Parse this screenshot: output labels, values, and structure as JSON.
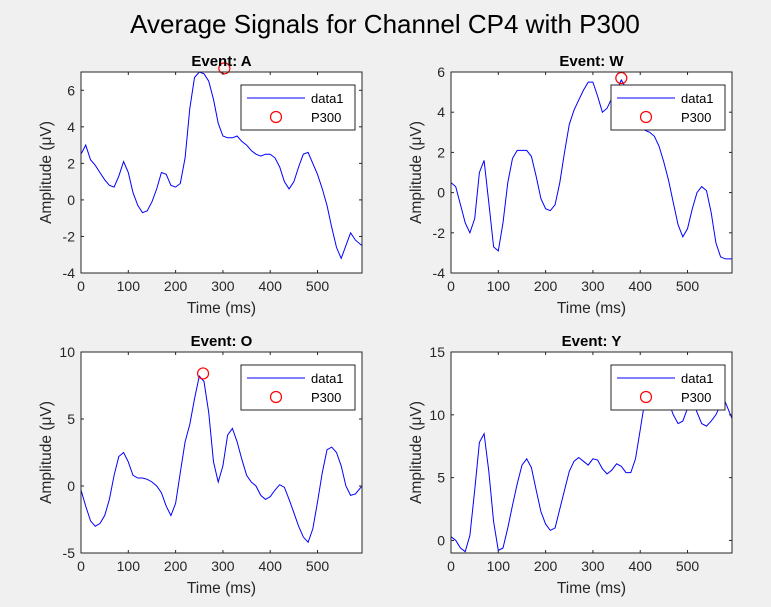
{
  "figure": {
    "title": "Average Signals for Channel CP4 with P300",
    "background": "#f0f0f0",
    "axes_color": "#262626",
    "line_color": "#0000ff",
    "marker_color": "#ff0000"
  },
  "chart_data": [
    {
      "type": "line",
      "title": "Event: A",
      "xlabel": "Time (ms)",
      "ylabel": "Amplitude (μV)",
      "xlim": [
        0,
        594
      ],
      "ylim": [
        -4,
        7
      ],
      "xticks": [
        0,
        100,
        200,
        300,
        400,
        500
      ],
      "yticks": [
        -4,
        -2,
        0,
        2,
        4,
        6
      ],
      "legend": {
        "location": "top-right",
        "entries": [
          "data1",
          "P300"
        ]
      },
      "series": [
        {
          "name": "data1",
          "x": [
            0,
            10,
            20,
            30,
            40,
            50,
            60,
            70,
            80,
            90,
            100,
            110,
            120,
            130,
            140,
            150,
            160,
            170,
            180,
            190,
            200,
            210,
            220,
            230,
            240,
            250,
            260,
            270,
            280,
            290,
            300,
            310,
            320,
            330,
            340,
            350,
            360,
            370,
            380,
            390,
            400,
            410,
            420,
            430,
            440,
            450,
            460,
            470,
            480,
            490,
            500,
            510,
            520,
            530,
            540,
            550,
            560,
            570,
            580,
            594
          ],
          "y": [
            2.5,
            3.0,
            2.2,
            1.9,
            1.5,
            1.1,
            0.8,
            0.7,
            1.3,
            2.1,
            1.5,
            0.4,
            -0.3,
            -0.7,
            -0.6,
            -0.1,
            0.6,
            1.5,
            1.4,
            0.8,
            0.7,
            0.9,
            2.3,
            5.0,
            6.7,
            7.0,
            6.9,
            6.5,
            5.5,
            4.2,
            3.5,
            3.4,
            3.4,
            3.5,
            3.2,
            3.0,
            2.7,
            2.5,
            2.4,
            2.5,
            2.5,
            2.3,
            1.8,
            1.0,
            0.6,
            1.0,
            1.8,
            2.5,
            2.6,
            2.0,
            1.4,
            0.6,
            -0.3,
            -1.5,
            -2.6,
            -3.2,
            -2.5,
            -1.8,
            -2.2,
            -2.5
          ]
        },
        {
          "name": "P300",
          "marker": "circle",
          "x": [
            303
          ],
          "y": [
            7.2
          ]
        }
      ]
    },
    {
      "type": "line",
      "title": "Event: W",
      "xlabel": "Time (ms)",
      "ylabel": "Amplitude (μV)",
      "xlim": [
        0,
        594
      ],
      "ylim": [
        -4,
        6
      ],
      "xticks": [
        0,
        100,
        200,
        300,
        400,
        500
      ],
      "yticks": [
        -4,
        -2,
        0,
        2,
        4,
        6
      ],
      "legend": {
        "location": "top-right",
        "entries": [
          "data1",
          "P300"
        ]
      },
      "series": [
        {
          "name": "data1",
          "x": [
            0,
            10,
            20,
            30,
            40,
            50,
            60,
            70,
            80,
            90,
            100,
            110,
            120,
            130,
            140,
            150,
            160,
            170,
            180,
            190,
            200,
            210,
            220,
            230,
            240,
            250,
            260,
            270,
            280,
            290,
            300,
            310,
            320,
            330,
            340,
            350,
            360,
            370,
            380,
            390,
            400,
            410,
            420,
            430,
            440,
            450,
            460,
            470,
            480,
            490,
            500,
            510,
            520,
            530,
            540,
            550,
            560,
            570,
            580,
            594
          ],
          "y": [
            0.5,
            0.3,
            -0.6,
            -1.5,
            -2.0,
            -1.3,
            1.0,
            1.6,
            -0.5,
            -2.7,
            -2.9,
            -1.5,
            0.5,
            1.7,
            2.1,
            2.1,
            2.1,
            1.8,
            0.8,
            -0.3,
            -0.8,
            -0.9,
            -0.6,
            0.5,
            2.0,
            3.4,
            4.1,
            4.6,
            5.1,
            5.5,
            5.5,
            4.8,
            4.0,
            4.2,
            4.7,
            5.1,
            5.6,
            5.2,
            4.6,
            3.8,
            3.3,
            3.1,
            3.0,
            2.8,
            2.3,
            1.5,
            0.6,
            -0.5,
            -1.6,
            -2.2,
            -1.8,
            -0.8,
            0.0,
            0.3,
            0.1,
            -1.0,
            -2.5,
            -3.2,
            -3.3,
            -3.3
          ]
        },
        {
          "name": "P300",
          "marker": "circle",
          "x": [
            360
          ],
          "y": [
            5.7
          ]
        }
      ]
    },
    {
      "type": "line",
      "title": "Event: O",
      "xlabel": "Time (ms)",
      "ylabel": "Amplitude (μV)",
      "xlim": [
        0,
        594
      ],
      "ylim": [
        -5,
        10
      ],
      "xticks": [
        0,
        100,
        200,
        300,
        400,
        500
      ],
      "yticks": [
        -5,
        0,
        5,
        10
      ],
      "legend": {
        "location": "top-right",
        "entries": [
          "data1",
          "P300"
        ]
      },
      "series": [
        {
          "name": "data1",
          "x": [
            0,
            10,
            20,
            30,
            40,
            50,
            60,
            70,
            80,
            90,
            100,
            110,
            120,
            130,
            140,
            150,
            160,
            170,
            180,
            190,
            200,
            210,
            220,
            230,
            240,
            250,
            260,
            270,
            280,
            290,
            300,
            310,
            320,
            330,
            340,
            350,
            360,
            370,
            380,
            390,
            400,
            410,
            420,
            430,
            440,
            450,
            460,
            470,
            480,
            490,
            500,
            510,
            520,
            530,
            540,
            550,
            560,
            570,
            580,
            594
          ],
          "y": [
            -0.3,
            -1.5,
            -2.6,
            -3.0,
            -2.8,
            -2.2,
            -1.0,
            0.8,
            2.2,
            2.5,
            1.8,
            0.8,
            0.6,
            0.6,
            0.5,
            0.3,
            0.0,
            -0.5,
            -1.5,
            -2.2,
            -1.3,
            1.0,
            3.3,
            4.6,
            6.5,
            8.2,
            7.8,
            5.5,
            1.8,
            0.3,
            1.5,
            3.8,
            4.3,
            3.3,
            2.0,
            0.8,
            0.3,
            0.0,
            -0.7,
            -1.0,
            -0.8,
            -0.3,
            0.1,
            -0.1,
            -1.0,
            -2.0,
            -3.0,
            -3.8,
            -4.2,
            -3.2,
            -1.2,
            1.0,
            2.7,
            2.9,
            2.5,
            1.5,
            0.0,
            -0.7,
            -0.6,
            0.0
          ]
        },
        {
          "name": "P300",
          "marker": "circle",
          "x": [
            258
          ],
          "y": [
            8.4
          ]
        }
      ]
    },
    {
      "type": "line",
      "title": "Event: Y",
      "xlabel": "Time (ms)",
      "ylabel": "Amplitude (μV)",
      "xlim": [
        0,
        594
      ],
      "ylim": [
        -1,
        15
      ],
      "xticks": [
        0,
        100,
        200,
        300,
        400,
        500
      ],
      "yticks": [
        0,
        5,
        10,
        15
      ],
      "legend": {
        "location": "top-right",
        "entries": [
          "data1",
          "P300"
        ]
      },
      "series": [
        {
          "name": "data1",
          "x": [
            0,
            10,
            20,
            30,
            40,
            50,
            60,
            70,
            80,
            90,
            100,
            110,
            120,
            130,
            140,
            150,
            160,
            170,
            180,
            190,
            200,
            210,
            220,
            230,
            240,
            250,
            260,
            270,
            280,
            290,
            300,
            310,
            320,
            330,
            340,
            350,
            360,
            370,
            380,
            390,
            400,
            410,
            420,
            430,
            440,
            450,
            460,
            470,
            480,
            490,
            500,
            510,
            520,
            530,
            540,
            550,
            560,
            570,
            580,
            594
          ],
          "y": [
            0.3,
            0.0,
            -0.6,
            -0.9,
            0.4,
            4.0,
            7.8,
            8.5,
            5.5,
            1.5,
            -0.8,
            -0.6,
            1.0,
            2.8,
            4.5,
            6.0,
            6.5,
            5.8,
            4.0,
            2.3,
            1.3,
            0.8,
            1.0,
            2.5,
            4.0,
            5.5,
            6.3,
            6.6,
            6.3,
            6.0,
            6.5,
            6.4,
            5.7,
            5.3,
            5.6,
            6.1,
            5.9,
            5.4,
            5.4,
            6.5,
            8.8,
            11.2,
            13.0,
            13.5,
            13.0,
            12.0,
            11.0,
            10.0,
            9.3,
            9.5,
            10.5,
            11.3,
            10.2,
            9.3,
            9.1,
            9.5,
            10.0,
            10.8,
            11.0,
            9.7
          ]
        },
        {
          "name": "P300",
          "marker": "circle",
          "x": [
            422
          ],
          "y": [
            13.2
          ]
        }
      ]
    }
  ]
}
